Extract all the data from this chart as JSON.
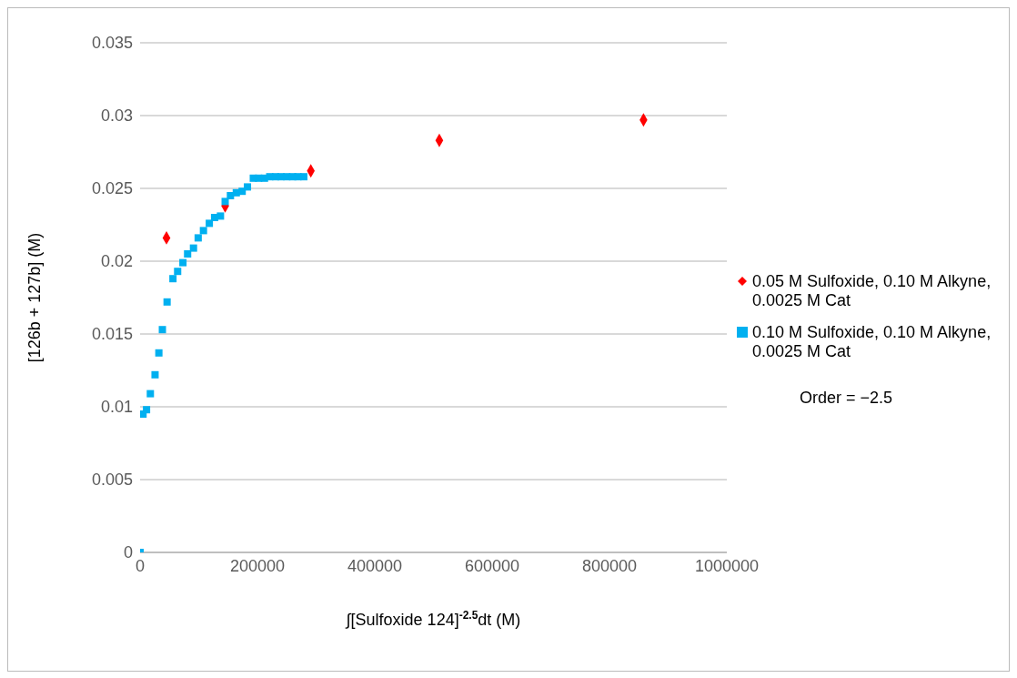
{
  "chart_data": {
    "type": "scatter",
    "xlabel": "∫[Sulfoxide  124]$^{-2.5}$dt (M)",
    "ylabel": "[126b + 127b] (M)",
    "xlim": [
      0,
      1000000
    ],
    "xticks": [
      0,
      200000,
      400000,
      600000,
      800000,
      1000000
    ],
    "ylim": [
      0,
      0.035
    ],
    "yticks": [
      0,
      0.005,
      0.01,
      0.015,
      0.02,
      0.025,
      0.03,
      0.035
    ],
    "grid": "y",
    "legend": "right",
    "series": [
      {
        "name": "0.05 M Sulfoxide, 0.10 M Alkyne, 0.0025 M Cat",
        "color": "#ff0000",
        "marker": "diamond",
        "x": [
          45000,
          145000,
          291000,
          510000,
          858000
        ],
        "values": [
          0.0216,
          0.0238,
          0.0262,
          0.0283,
          0.0297
        ]
      },
      {
        "name": "0.10 M Sulfoxide, 0.10 M Alkyne, 0.0025 M Cat",
        "color": "#00b0f0",
        "marker": "square",
        "x": [
          0,
          5000,
          11000,
          17500,
          25500,
          32000,
          38000,
          46000,
          56000,
          64000,
          73000,
          81000,
          91000,
          99000,
          108000,
          118000,
          127000,
          137000,
          145000,
          154000,
          164000,
          174000,
          183000,
          193000,
          202000,
          212000,
          221000,
          231000,
          240000,
          250000,
          260000,
          269000,
          279000
        ],
        "values": [
          0,
          0.0095,
          0.0098,
          0.0109,
          0.0122,
          0.0137,
          0.0153,
          0.0172,
          0.0188,
          0.0193,
          0.0199,
          0.0205,
          0.0209,
          0.0216,
          0.0221,
          0.0226,
          0.023,
          0.0231,
          0.0241,
          0.0245,
          0.0247,
          0.0248,
          0.0251,
          0.0257,
          0.0257,
          0.0257,
          0.0258,
          0.0258,
          0.0258,
          0.0258,
          0.0258,
          0.0258,
          0.0258
        ]
      }
    ],
    "annotations": [
      "Order = −2.5"
    ]
  }
}
